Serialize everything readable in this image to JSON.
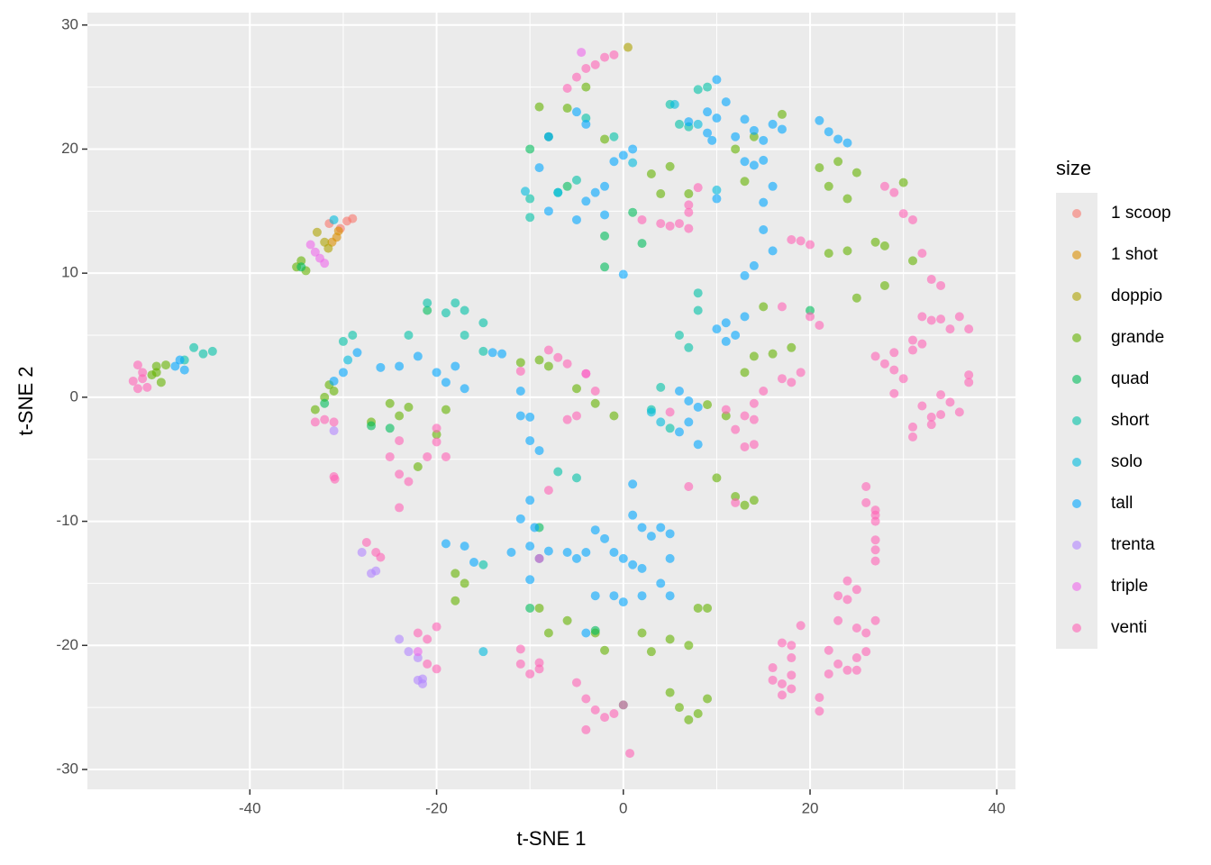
{
  "chart_data": {
    "type": "scatter",
    "x_label": "t-SNE 1",
    "y_label": "t-SNE 2",
    "legend_title": "size",
    "xlim": [
      -57.4,
      42.0
    ],
    "ylim": [
      -31.6,
      31.0
    ],
    "xticks": [
      -40,
      -20,
      0,
      20,
      40
    ],
    "yticks": [
      -30,
      -20,
      -10,
      0,
      10,
      20,
      30
    ],
    "grid": true,
    "legend": "right",
    "series": [
      {
        "name": "1 scoop",
        "color": "#F8766D",
        "x": [
          -29.0,
          -29.6,
          -30.3,
          -31.5
        ],
        "y": [
          14.4,
          14.2,
          13.6,
          14.0
        ]
      },
      {
        "name": "1 shot",
        "color": "#DB8E00",
        "x": [
          -30.7,
          -30.5,
          -31.2
        ],
        "y": [
          12.9,
          13.4,
          12.5
        ]
      },
      {
        "name": "doppio",
        "color": "#AEA200",
        "x": [
          -32.8,
          -32.0,
          -31.6,
          0.5
        ],
        "y": [
          13.3,
          12.5,
          12.0,
          28.2
        ]
      },
      {
        "name": "grande",
        "color": "#64B200",
        "x": [
          -50,
          -50.5,
          -49.5,
          -50,
          -49,
          -35,
          -34.5,
          -34,
          -33,
          -32,
          -31,
          -31.5,
          -27,
          -25,
          -24,
          -23,
          -22,
          -20,
          -19,
          -18,
          -17,
          -18,
          -11,
          -9,
          -8,
          -5,
          -3,
          -1,
          -9,
          -6,
          -4,
          -2,
          3,
          5,
          7,
          4,
          -9,
          -8,
          -6,
          -3,
          -2,
          2,
          3,
          5,
          7,
          8,
          9,
          5,
          6,
          8,
          9,
          7,
          9,
          11,
          12,
          14,
          13,
          10,
          14,
          16,
          18,
          15,
          13,
          12,
          14,
          17,
          13,
          21,
          22,
          23,
          24,
          25,
          22,
          24,
          25,
          27,
          28,
          28,
          31,
          30
        ],
        "y": [
          2.5,
          1.8,
          1.2,
          2.0,
          2.6,
          10.5,
          11,
          10.2,
          -1,
          0,
          0.5,
          1,
          -2,
          -0.5,
          -1.5,
          -0.8,
          -5.6,
          -3,
          -1,
          -14.2,
          -15,
          -16.4,
          2.8,
          3,
          2.5,
          0.7,
          -0.5,
          -1.5,
          23.4,
          23.3,
          25,
          20.8,
          18,
          18.6,
          16.4,
          16.4,
          -17,
          -19,
          -18,
          -19,
          -20.4,
          -19,
          -20.5,
          -19.5,
          -20,
          -17,
          -17,
          -23.8,
          -25,
          -25.5,
          -24.3,
          -26,
          -0.6,
          -1.5,
          -8,
          -8.3,
          -8.7,
          -6.5,
          3.3,
          3.5,
          4,
          7.3,
          2,
          20,
          21,
          22.8,
          17.4,
          18.5,
          17,
          19,
          16,
          18.1,
          11.6,
          11.8,
          8,
          12.5,
          12.2,
          9,
          11,
          17.3
        ]
      },
      {
        "name": "quad",
        "color": "#00BD5C",
        "x": [
          -10,
          -8,
          -6,
          -2,
          -2,
          1,
          2,
          -9,
          -3,
          0,
          -25,
          -21,
          -27,
          -32,
          -34.5,
          -10,
          20
        ],
        "y": [
          20,
          21,
          17,
          10.5,
          13,
          14.9,
          12.4,
          -10.5,
          -18.8,
          -24.8,
          -2.5,
          7,
          -2.3,
          -0.5,
          10.5,
          -17,
          7
        ]
      },
      {
        "name": "short",
        "color": "#00C1A7",
        "x": [
          -46,
          -47,
          -45,
          -44,
          -30,
          -29,
          -23,
          -21,
          -19,
          -18,
          -17,
          -15,
          -15,
          -17,
          -10,
          -10,
          -7,
          -5,
          8,
          9,
          6,
          7,
          5,
          8,
          8,
          6,
          7,
          4,
          3,
          5,
          -7,
          -5,
          -15,
          -1,
          -4
        ],
        "y": [
          4,
          3,
          3.5,
          3.7,
          4.5,
          5,
          5,
          7.6,
          6.8,
          7.6,
          7,
          6,
          3.7,
          5,
          14.5,
          16,
          16.5,
          17.5,
          24.8,
          25,
          22,
          21.8,
          23.6,
          8.4,
          7,
          5,
          4,
          0.8,
          -1,
          -2.5,
          -6,
          -6.5,
          -13.5,
          21,
          22.5
        ]
      },
      {
        "name": "solo",
        "color": "#00BADE",
        "x": [
          -31,
          -29.5,
          -15,
          -10.5,
          -7,
          1,
          4,
          10,
          5.5,
          8,
          3
        ],
        "y": [
          14.3,
          3,
          -20.5,
          16.6,
          16.5,
          18.9,
          -2,
          16.7,
          23.6,
          22,
          -1.2
        ]
      },
      {
        "name": "tall",
        "color": "#00A6FF",
        "x": [
          -47.5,
          -48,
          -47,
          -31,
          -30,
          -28.5,
          -26,
          -24,
          -22,
          -20,
          -19,
          -18,
          -17,
          -14,
          -13,
          -11,
          -11,
          -10,
          -10,
          -9,
          -11,
          -10,
          -9.5,
          -10,
          -9,
          -12,
          -10,
          -8,
          -6,
          -5,
          -4,
          -3,
          -2,
          -1,
          0,
          1,
          2,
          1,
          1,
          2,
          3,
          4,
          5,
          5,
          4,
          5,
          -1,
          0,
          2,
          -3,
          -4,
          -19,
          -17,
          -16,
          -5,
          -4,
          -8,
          -9,
          -8,
          -5,
          -4,
          -3,
          -2,
          -2,
          -1,
          0,
          1,
          0,
          7,
          9,
          9,
          10,
          10,
          11,
          12,
          13,
          14,
          15,
          16,
          17,
          13,
          14,
          15,
          16,
          15,
          15,
          16,
          14,
          13,
          11,
          10,
          11,
          12,
          13,
          6,
          7,
          8,
          7,
          8,
          6,
          21,
          22,
          23,
          24,
          9.5,
          10
        ],
        "y": [
          3,
          2.5,
          2.2,
          1.3,
          2,
          3.6,
          2.4,
          2.5,
          3.3,
          2,
          1.2,
          2.5,
          0.7,
          3.6,
          3.5,
          0.5,
          -1.5,
          -1.6,
          -3.5,
          -4.3,
          -9.8,
          -8.3,
          -10.5,
          -12,
          -13,
          -12.5,
          -14.7,
          -12.4,
          -12.5,
          -13,
          -12.5,
          -10.7,
          -11.4,
          -12.5,
          -13,
          -13.5,
          -13.8,
          -9.5,
          -7,
          -10.5,
          -11.2,
          -10.5,
          -11,
          -13,
          -15,
          -16,
          -16,
          -16.5,
          -16,
          -16,
          -19,
          -11.8,
          -12,
          -13.3,
          23,
          22,
          21,
          18.5,
          15,
          14.3,
          15.8,
          16.5,
          17,
          14.7,
          19,
          19.5,
          20,
          9.9,
          22.2,
          21.3,
          23,
          25.6,
          22.5,
          23.8,
          21,
          22.4,
          21.5,
          20.7,
          22,
          21.6,
          19,
          18.7,
          19.1,
          17,
          15.7,
          13.5,
          11.8,
          10.6,
          9.8,
          6,
          5.5,
          4.5,
          5,
          6.5,
          0.5,
          -0.3,
          -0.8,
          -2,
          -3.8,
          -2.8,
          22.3,
          21.4,
          20.8,
          20.5,
          20.7,
          16
        ]
      },
      {
        "name": "trenta",
        "color": "#B385FF",
        "x": [
          -28,
          -27,
          -26.5,
          -24,
          -23,
          -22,
          -21.5,
          -22,
          -21.5,
          -31
        ],
        "y": [
          -12.5,
          -14.2,
          -14,
          -19.5,
          -20.5,
          -21,
          -22.7,
          -22.8,
          -23.1,
          -2.7
        ]
      },
      {
        "name": "triple",
        "color": "#EF67EB",
        "x": [
          -4.5,
          -33.5,
          -33,
          -32.5,
          -32,
          -22,
          -4
        ],
        "y": [
          27.8,
          12.3,
          11.7,
          11.2,
          10.8,
          -20.5,
          1.9
        ]
      },
      {
        "name": "venti",
        "color": "#FF63B6",
        "x": [
          -52,
          -52.5,
          -51.5,
          -51,
          -52,
          -51.5,
          -33,
          -32,
          -31,
          -31,
          -30.9,
          -25,
          -24,
          -23,
          -24,
          -24,
          -21,
          -20,
          -19,
          -20,
          -27.5,
          -26.5,
          -26,
          -22,
          -21,
          -21,
          -20,
          -20,
          -11,
          -11,
          -9,
          -9,
          -10,
          -5,
          -4,
          -3,
          -2,
          -1,
          0,
          -4,
          0.7,
          -6,
          -5,
          -3,
          -2,
          -1,
          -4,
          -11,
          -8,
          -7,
          -6,
          -6,
          -5,
          -4,
          -3,
          -8,
          2,
          4,
          5,
          6,
          7,
          7,
          7,
          8,
          11,
          13,
          14,
          12,
          13,
          14,
          14,
          15,
          17,
          18,
          19,
          17,
          20,
          21,
          12,
          7,
          19,
          20,
          18,
          28,
          29,
          30,
          31,
          32,
          33,
          34,
          32,
          33,
          34,
          35,
          36,
          37,
          31,
          32,
          31,
          27,
          28,
          29,
          29,
          29,
          30,
          31,
          31,
          32,
          33,
          34,
          33,
          34,
          35,
          36,
          37,
          37,
          26,
          26,
          27,
          27,
          27,
          27,
          27,
          27,
          23,
          24,
          24,
          25,
          23,
          25,
          26,
          26,
          27,
          25,
          23,
          22,
          21,
          21,
          22,
          24,
          25,
          19,
          18,
          18,
          18,
          17,
          16,
          17,
          18,
          16,
          17,
          5,
          -9
        ],
        "y": [
          0.7,
          1.3,
          2,
          0.8,
          2.6,
          1.5,
          -2,
          -1.8,
          -2,
          -6.4,
          -6.6,
          -4.8,
          -6.2,
          -6.8,
          -8.9,
          -3.5,
          -4.8,
          -3.6,
          -4.8,
          -2.5,
          -11.7,
          -12.5,
          -12.9,
          -19,
          -19.5,
          -21.5,
          -21.9,
          -18.5,
          -20.3,
          -21.5,
          -21.9,
          -21.4,
          -22.3,
          -23,
          -24.3,
          -25.2,
          -25.8,
          -25.5,
          -24.8,
          -26.8,
          -28.7,
          24.9,
          25.8,
          26.8,
          27.4,
          27.6,
          26.5,
          2.1,
          3.8,
          3.2,
          2.7,
          -1.8,
          -1.5,
          1.9,
          0.5,
          -7.5,
          14.3,
          14,
          13.8,
          14,
          13.6,
          14.9,
          15.5,
          16.9,
          -1,
          -1.5,
          -1.8,
          -2.6,
          -4,
          -3.8,
          -0.5,
          0.5,
          1.5,
          1.2,
          2,
          7.3,
          6.5,
          5.8,
          -8.5,
          -7.2,
          12.6,
          12.3,
          12.7,
          17,
          16.5,
          14.8,
          14.3,
          11.6,
          9.5,
          9,
          6.5,
          6.2,
          6.3,
          5.5,
          6.5,
          5.5,
          4.6,
          4.3,
          3.8,
          3.3,
          2.7,
          2.2,
          3.6,
          0.3,
          1.5,
          -2.4,
          -3.2,
          -0.7,
          -1.6,
          -1.4,
          -2.2,
          0.2,
          -0.4,
          -1.2,
          1.8,
          1.2,
          -7.2,
          -8.5,
          -9.5,
          -10,
          -11.5,
          -12.3,
          -13.2,
          -9.1,
          -16,
          -14.8,
          -16.3,
          -15.5,
          -18,
          -18.6,
          -19,
          -20.5,
          -18,
          -21,
          -21.5,
          -22.3,
          -24.2,
          -25.3,
          -20.4,
          -22,
          -22,
          -18.4,
          -20,
          -21,
          -22.4,
          -23.1,
          -22.8,
          -24,
          -23.5,
          -21.8,
          -19.8,
          -1.2,
          -13
        ]
      }
    ]
  }
}
